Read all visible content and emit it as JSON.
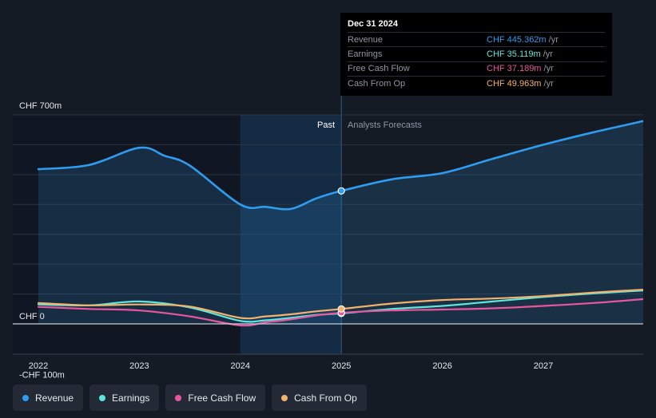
{
  "tooltip": {
    "date": "Dec 31 2024",
    "rows": [
      {
        "label": "Revenue",
        "value": "CHF 445.362m",
        "unit": "/yr",
        "color": "#2f9cf0"
      },
      {
        "label": "Earnings",
        "value": "CHF 35.119m",
        "unit": "/yr",
        "color": "#5ee6dc"
      },
      {
        "label": "Free Cash Flow",
        "value": "CHF 37.189m",
        "unit": "/yr",
        "color": "#e8579c"
      },
      {
        "label": "Cash From Op",
        "value": "CHF 49.963m",
        "unit": "/yr",
        "color": "#f4b26a"
      }
    ]
  },
  "labels": {
    "past": "Past",
    "forecast": "Analysts Forecasts"
  },
  "legend": [
    {
      "label": "Revenue",
      "color": "#2f9cf0"
    },
    {
      "label": "Earnings",
      "color": "#5ee6dc"
    },
    {
      "label": "Free Cash Flow",
      "color": "#e8579c"
    },
    {
      "label": "Cash From Op",
      "color": "#f4b26a"
    }
  ],
  "chart_data": {
    "type": "line",
    "title": "",
    "xlabel": "",
    "ylabel": "",
    "x_ticks": [
      "2022",
      "2023",
      "2024",
      "2025",
      "2026",
      "2027"
    ],
    "y_ticks": [
      {
        "value": 700,
        "label": "CHF 700m"
      },
      {
        "value": 0,
        "label": "CHF 0"
      },
      {
        "value": -100,
        "label": "-CHF 100m"
      }
    ],
    "ylim": [
      -100,
      700
    ],
    "xlim": [
      2021.9,
      2028.0
    ],
    "past_range": [
      2024.0,
      2025.0
    ],
    "highlight_x": 2025.0,
    "series": [
      {
        "name": "Revenue",
        "color": "#2f9cf0",
        "fill": true,
        "points": [
          [
            2022.0,
            518
          ],
          [
            2022.5,
            532
          ],
          [
            2023.0,
            590
          ],
          [
            2023.25,
            563
          ],
          [
            2023.5,
            530
          ],
          [
            2024.0,
            400
          ],
          [
            2024.25,
            392
          ],
          [
            2024.5,
            385
          ],
          [
            2024.75,
            420
          ],
          [
            2025.0,
            445.362
          ],
          [
            2025.5,
            484
          ],
          [
            2026.0,
            505
          ],
          [
            2026.5,
            553
          ],
          [
            2027.0,
            600
          ],
          [
            2027.5,
            642
          ],
          [
            2028.0,
            680
          ]
        ]
      },
      {
        "name": "Earnings",
        "color": "#5ee6dc",
        "fill": false,
        "points": [
          [
            2022.0,
            65
          ],
          [
            2022.5,
            62
          ],
          [
            2023.0,
            75
          ],
          [
            2023.5,
            55
          ],
          [
            2024.0,
            10
          ],
          [
            2024.25,
            12
          ],
          [
            2024.5,
            20
          ],
          [
            2024.75,
            30
          ],
          [
            2025.0,
            35.119
          ],
          [
            2025.5,
            50
          ],
          [
            2026.0,
            60
          ],
          [
            2026.5,
            75
          ],
          [
            2027.0,
            90
          ],
          [
            2027.5,
            102
          ],
          [
            2028.0,
            112
          ]
        ]
      },
      {
        "name": "Free Cash Flow",
        "color": "#e8579c",
        "fill": false,
        "points": [
          [
            2022.0,
            57
          ],
          [
            2022.5,
            50
          ],
          [
            2023.0,
            45
          ],
          [
            2023.5,
            25
          ],
          [
            2024.0,
            -5
          ],
          [
            2024.25,
            5
          ],
          [
            2024.5,
            15
          ],
          [
            2024.75,
            28
          ],
          [
            2025.0,
            37.189
          ],
          [
            2025.5,
            45
          ],
          [
            2026.0,
            48
          ],
          [
            2026.5,
            52
          ],
          [
            2027.0,
            60
          ],
          [
            2027.5,
            70
          ],
          [
            2028.0,
            83
          ]
        ]
      },
      {
        "name": "Cash From Op",
        "color": "#f4b26a",
        "fill": false,
        "points": [
          [
            2022.0,
            70
          ],
          [
            2022.5,
            62
          ],
          [
            2023.0,
            65
          ],
          [
            2023.5,
            58
          ],
          [
            2024.0,
            20
          ],
          [
            2024.25,
            25
          ],
          [
            2024.5,
            32
          ],
          [
            2024.75,
            42
          ],
          [
            2025.0,
            49.963
          ],
          [
            2025.5,
            68
          ],
          [
            2026.0,
            80
          ],
          [
            2026.5,
            85
          ],
          [
            2027.0,
            93
          ],
          [
            2027.5,
            105
          ],
          [
            2028.0,
            115
          ]
        ]
      }
    ]
  }
}
